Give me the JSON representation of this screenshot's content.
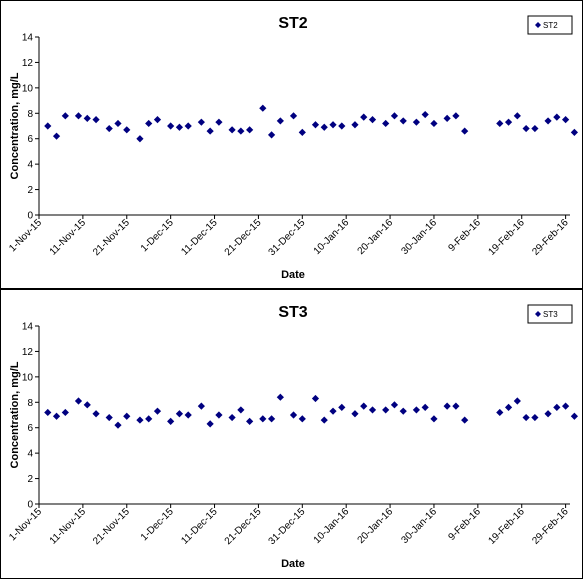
{
  "chart_data": [
    {
      "type": "scatter",
      "title": "ST2",
      "xlabel": "Date",
      "ylabel": "Concentration, mg/L",
      "ylim": [
        0,
        14
      ],
      "yticks": [
        "0",
        "2",
        "4",
        "6",
        "8",
        "10",
        "12",
        "14"
      ],
      "xlim": [
        "2015-11-01",
        "2016-03-01"
      ],
      "xticks": [
        "1-Nov-15",
        "11-Nov-15",
        "21-Nov-15",
        "1-Dec-15",
        "11-Dec-15",
        "21-Dec-15",
        "31-Dec-15",
        "10-Jan-16",
        "20-Jan-16",
        "30-Jan-16",
        "9-Feb-16",
        "19-Feb-16",
        "29-Feb-16"
      ],
      "legend": "top-right",
      "marker_color": "#000080",
      "series": [
        {
          "name": "ST2",
          "points": [
            {
              "x": "2015-11-03",
              "y": 7.0
            },
            {
              "x": "2015-11-05",
              "y": 6.2
            },
            {
              "x": "2015-11-07",
              "y": 7.8
            },
            {
              "x": "2015-11-10",
              "y": 7.8
            },
            {
              "x": "2015-11-12",
              "y": 7.6
            },
            {
              "x": "2015-11-14",
              "y": 7.5
            },
            {
              "x": "2015-11-17",
              "y": 6.8
            },
            {
              "x": "2015-11-19",
              "y": 7.2
            },
            {
              "x": "2015-11-21",
              "y": 6.7
            },
            {
              "x": "2015-11-24",
              "y": 6.0
            },
            {
              "x": "2015-11-26",
              "y": 7.2
            },
            {
              "x": "2015-11-28",
              "y": 7.5
            },
            {
              "x": "2015-12-01",
              "y": 7.0
            },
            {
              "x": "2015-12-03",
              "y": 6.9
            },
            {
              "x": "2015-12-05",
              "y": 7.0
            },
            {
              "x": "2015-12-08",
              "y": 7.3
            },
            {
              "x": "2015-12-10",
              "y": 6.6
            },
            {
              "x": "2015-12-12",
              "y": 7.3
            },
            {
              "x": "2015-12-15",
              "y": 6.7
            },
            {
              "x": "2015-12-17",
              "y": 6.6
            },
            {
              "x": "2015-12-19",
              "y": 6.7
            },
            {
              "x": "2015-12-22",
              "y": 8.4
            },
            {
              "x": "2015-12-24",
              "y": 6.3
            },
            {
              "x": "2015-12-26",
              "y": 7.4
            },
            {
              "x": "2015-12-29",
              "y": 7.8
            },
            {
              "x": "2015-12-31",
              "y": 6.5
            },
            {
              "x": "2016-01-03",
              "y": 7.1
            },
            {
              "x": "2016-01-05",
              "y": 6.9
            },
            {
              "x": "2016-01-07",
              "y": 7.1
            },
            {
              "x": "2016-01-09",
              "y": 7.0
            },
            {
              "x": "2016-01-12",
              "y": 7.1
            },
            {
              "x": "2016-01-14",
              "y": 7.7
            },
            {
              "x": "2016-01-16",
              "y": 7.5
            },
            {
              "x": "2016-01-19",
              "y": 7.2
            },
            {
              "x": "2016-01-21",
              "y": 7.8
            },
            {
              "x": "2016-01-23",
              "y": 7.4
            },
            {
              "x": "2016-01-26",
              "y": 7.3
            },
            {
              "x": "2016-01-28",
              "y": 7.9
            },
            {
              "x": "2016-01-30",
              "y": 7.2
            },
            {
              "x": "2016-02-02",
              "y": 7.6
            },
            {
              "x": "2016-02-04",
              "y": 7.8
            },
            {
              "x": "2016-02-06",
              "y": 6.6
            },
            {
              "x": "2016-02-14",
              "y": 7.2
            },
            {
              "x": "2016-02-16",
              "y": 7.3
            },
            {
              "x": "2016-02-18",
              "y": 7.8
            },
            {
              "x": "2016-02-20",
              "y": 6.8
            },
            {
              "x": "2016-02-22",
              "y": 6.8
            },
            {
              "x": "2016-02-25",
              "y": 7.4
            },
            {
              "x": "2016-02-27",
              "y": 7.7
            },
            {
              "x": "2016-02-29",
              "y": 7.5
            },
            {
              "x": "2016-03-02",
              "y": 6.5
            }
          ]
        }
      ]
    },
    {
      "type": "scatter",
      "title": "ST3",
      "xlabel": "Date",
      "ylabel": "Concentration, mg/L",
      "ylim": [
        0,
        14
      ],
      "yticks": [
        "0",
        "2",
        "4",
        "6",
        "8",
        "10",
        "12",
        "14"
      ],
      "xlim": [
        "2015-11-01",
        "2016-03-01"
      ],
      "xticks": [
        "1-Nov-15",
        "11-Nov-15",
        "21-Nov-15",
        "1-Dec-15",
        "11-Dec-15",
        "21-Dec-15",
        "31-Dec-15",
        "10-Jan-16",
        "20-Jan-16",
        "30-Jan-16",
        "9-Feb-16",
        "19-Feb-16",
        "29-Feb-16"
      ],
      "legend": "top-right",
      "marker_color": "#000080",
      "series": [
        {
          "name": "ST3",
          "points": [
            {
              "x": "2015-11-03",
              "y": 7.2
            },
            {
              "x": "2015-11-05",
              "y": 6.9
            },
            {
              "x": "2015-11-07",
              "y": 7.2
            },
            {
              "x": "2015-11-10",
              "y": 8.1
            },
            {
              "x": "2015-11-12",
              "y": 7.8
            },
            {
              "x": "2015-11-14",
              "y": 7.1
            },
            {
              "x": "2015-11-17",
              "y": 6.8
            },
            {
              "x": "2015-11-19",
              "y": 6.2
            },
            {
              "x": "2015-11-21",
              "y": 6.9
            },
            {
              "x": "2015-11-24",
              "y": 6.6
            },
            {
              "x": "2015-11-26",
              "y": 6.7
            },
            {
              "x": "2015-11-28",
              "y": 7.3
            },
            {
              "x": "2015-12-01",
              "y": 6.5
            },
            {
              "x": "2015-12-03",
              "y": 7.1
            },
            {
              "x": "2015-12-05",
              "y": 7.0
            },
            {
              "x": "2015-12-08",
              "y": 7.7
            },
            {
              "x": "2015-12-10",
              "y": 6.3
            },
            {
              "x": "2015-12-12",
              "y": 7.0
            },
            {
              "x": "2015-12-15",
              "y": 6.8
            },
            {
              "x": "2015-12-17",
              "y": 7.4
            },
            {
              "x": "2015-12-19",
              "y": 6.5
            },
            {
              "x": "2015-12-22",
              "y": 6.7
            },
            {
              "x": "2015-12-24",
              "y": 6.7
            },
            {
              "x": "2015-12-26",
              "y": 8.4
            },
            {
              "x": "2015-12-29",
              "y": 7.0
            },
            {
              "x": "2015-12-31",
              "y": 6.7
            },
            {
              "x": "2016-01-03",
              "y": 8.3
            },
            {
              "x": "2016-01-05",
              "y": 6.6
            },
            {
              "x": "2016-01-07",
              "y": 7.3
            },
            {
              "x": "2016-01-09",
              "y": 7.6
            },
            {
              "x": "2016-01-12",
              "y": 7.1
            },
            {
              "x": "2016-01-14",
              "y": 7.7
            },
            {
              "x": "2016-01-16",
              "y": 7.4
            },
            {
              "x": "2016-01-19",
              "y": 7.4
            },
            {
              "x": "2016-01-21",
              "y": 7.8
            },
            {
              "x": "2016-01-23",
              "y": 7.3
            },
            {
              "x": "2016-01-26",
              "y": 7.4
            },
            {
              "x": "2016-01-28",
              "y": 7.6
            },
            {
              "x": "2016-01-30",
              "y": 6.7
            },
            {
              "x": "2016-02-02",
              "y": 7.7
            },
            {
              "x": "2016-02-04",
              "y": 7.7
            },
            {
              "x": "2016-02-06",
              "y": 6.6
            },
            {
              "x": "2016-02-14",
              "y": 7.2
            },
            {
              "x": "2016-02-16",
              "y": 7.6
            },
            {
              "x": "2016-02-18",
              "y": 8.1
            },
            {
              "x": "2016-02-20",
              "y": 6.8
            },
            {
              "x": "2016-02-22",
              "y": 6.8
            },
            {
              "x": "2016-02-25",
              "y": 7.1
            },
            {
              "x": "2016-02-27",
              "y": 7.6
            },
            {
              "x": "2016-02-29",
              "y": 7.7
            },
            {
              "x": "2016-03-02",
              "y": 6.9
            }
          ]
        }
      ]
    }
  ]
}
